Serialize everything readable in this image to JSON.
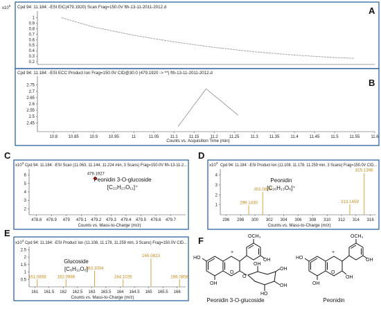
{
  "colors": {
    "frame": "#3d6fa6",
    "trace": "#9a9a9a",
    "stick": "#d9a441",
    "peaklabel": "#c08a1a",
    "marker": "#cc1111"
  },
  "panels": {
    "A": {
      "letter": "A",
      "title": "Cpd 94: 11.184: -ESI EIC(479.1920) Scan Frag=150.0V fth-13-11-2011-2012.d",
      "scale": "x10",
      "exp": "6"
    },
    "B": {
      "letter": "B",
      "title": "Cpd 94: 11.184: -ESI ECC Product Ion Frag=150.0V CID@30.0 (479.1920 -> **) fth-13-11-2011-2012.d",
      "xlabel": "Counts vs. Acquisition Time (min)"
    },
    "C": {
      "letter": "C",
      "title": "Cpd 94: 11.184: -ESI Scan (11.063, 11.144, 11.224 min, 3 Scans) Frag=150.0V fth-13-11-2...",
      "scale": "x10",
      "exp": "3",
      "xlabel": "Counts vs. Mass-to-Charge (m/z)",
      "compound": "Peonidin 3-O-glucoside",
      "formula": "[C₂₂H₂₃O₁₁]⁺"
    },
    "D": {
      "letter": "D",
      "title": "Cpd 94: 11.184: -ESI Product Ion (11.108, 11.178, 11.259 min, 3 Scans) Frag=150.0V CID...",
      "scale": "x10",
      "exp": "3",
      "xlabel": "Counts vs. Mass-to-Charge (m/z)",
      "compound": "Peonidin",
      "formula": "[C₁₆H₁₃O₆]⁺"
    },
    "E": {
      "letter": "E",
      "title": "Cpd 94: 11.184: -ESI Product Ion (11.108, 11.178, 11.259 min, 3 Scans) Frag=150.0V CID...",
      "scale": "x10",
      "exp": "3",
      "xlabel": "Counts vs. Mass-to-Charge (m/z)",
      "compound": "Glucoside",
      "formula": "[C₆H₁₁O₆]"
    },
    "F": {
      "letter": "F",
      "caption_left": "Peonidin 3-O-glucoside",
      "caption_right": "Peonidin",
      "atoms": {
        "oh": "OH",
        "ho": "HO",
        "och3": "OCH₃",
        "o": "O",
        "plus": "+"
      }
    }
  },
  "chart_data": [
    {
      "id": "A",
      "type": "line",
      "title": "Cpd 94: 11.184: -ESI EIC(479.1920) Scan Frag=150.0V fth-13-11-2011-2012.d",
      "xlabel": "",
      "ylabel": "",
      "xlim": [
        10.76,
        11.6
      ],
      "ylim": [
        0.15,
        1.12
      ],
      "y_multiplier": "x10^6",
      "yticks": [
        0.2,
        0.3,
        0.4,
        0.5,
        0.6,
        0.7,
        0.8,
        0.9,
        1
      ],
      "x": [
        10.82,
        10.9,
        11.0,
        11.1,
        11.2,
        11.3,
        11.4,
        11.5,
        11.55
      ],
      "y": [
        1.0,
        0.83,
        0.68,
        0.56,
        0.46,
        0.38,
        0.32,
        0.275,
        0.26
      ]
    },
    {
      "id": "B",
      "type": "line",
      "title": "Cpd 94: 11.184: -ESI ECC Product Ion Frag=150.0V CID@30.0 (479.1920 -> **) fth-13-11-2011-2012.d",
      "xlabel": "Counts vs. Acquisition Time (min)",
      "ylabel": "",
      "xlim": [
        10.76,
        11.6
      ],
      "ylim": [
        2.38,
        2.82
      ],
      "yticks": [
        2.45,
        2.5,
        2.55,
        2.6,
        2.65,
        2.7,
        2.75
      ],
      "xticks": [
        10.8,
        10.85,
        10.9,
        10.95,
        11,
        11.05,
        11.1,
        11.15,
        11.2,
        11.25,
        11.3,
        11.35,
        11.4,
        11.45,
        11.5,
        11.55,
        11.6
      ],
      "x": [
        11.11,
        11.18,
        11.26
      ],
      "y": [
        2.42,
        2.72,
        2.51
      ]
    },
    {
      "id": "C",
      "type": "scatter",
      "title": "Cpd 94: 11.184: -ESI Scan (11.063, 11.144, 11.224 min, 3 Scans) Frag=150.0V fth-13-11-2...",
      "xlabel": "Counts vs. Mass-to-Charge (m/z)",
      "ylabel": "",
      "xlim": [
        478.75,
        479.8
      ],
      "ylim": [
        1.3,
        6.7
      ],
      "y_multiplier": "x10^3",
      "yticks": [
        2,
        3,
        4,
        5,
        6
      ],
      "xticks": [
        478.8,
        478.9,
        479,
        479.1,
        479.2,
        479.3,
        479.4,
        479.5,
        479.6,
        479.7
      ],
      "peaks": [
        {
          "x": 479.1927,
          "y": 5.6,
          "label": "479.1927"
        }
      ]
    },
    {
      "id": "D",
      "type": "bar",
      "title": "Cpd 94: 11.184: -ESI Product Ion (11.108, 11.178, 11.259 min, 3 Scans) Frag=150.0V CID...",
      "xlabel": "Counts vs. Mass-to-Charge (m/z)",
      "ylabel": "",
      "xlim": [
        295.2,
        316.8
      ],
      "ylim": [
        0,
        4.6
      ],
      "y_multiplier": "x10^3",
      "yticks": [
        1,
        2,
        3,
        4
      ],
      "xticks": [
        296,
        298,
        300,
        302,
        304,
        306,
        308,
        310,
        312,
        314,
        316
      ],
      "peaks": [
        {
          "x": 299.143,
          "y": 0.95,
          "label": "299.1430"
        },
        {
          "x": 301.0875,
          "y": 2.3,
          "label": "301.0875"
        },
        {
          "x": 313.1459,
          "y": 1.05,
          "label": "313.1459"
        },
        {
          "x": 315.1396,
          "y": 4.2,
          "label": "315.1396"
        }
      ]
    },
    {
      "id": "E",
      "type": "bar",
      "title": "Cpd 94: 11.184: -ESI Product Ion (11.108, 11.178, 11.259 min, 3 Scans) Frag=150.0V CID...",
      "xlabel": "Counts vs. Mass-to-Charge (m/z)",
      "ylabel": "",
      "xlim": [
        160.8,
        166.3
      ],
      "ylim": [
        0,
        2.7
      ],
      "y_multiplier": "x10^3",
      "yticks": [
        0.5,
        1,
        1.5,
        2,
        2.5
      ],
      "xticks": [
        161,
        161.5,
        162,
        162.5,
        163,
        163.5,
        164,
        164.5,
        165,
        165.5,
        166
      ],
      "peaks": [
        {
          "x": 161.0858,
          "y": 0.5,
          "label": "161.0858"
        },
        {
          "x": 162.0986,
          "y": 0.5,
          "label": "162.0986"
        },
        {
          "x": 163.1004,
          "y": 1.08,
          "label": "163.1004"
        },
        {
          "x": 164.1026,
          "y": 0.5,
          "label": "164.1026"
        },
        {
          "x": 165.0823,
          "y": 1.9,
          "label": "165.0823"
        },
        {
          "x": 166.0858,
          "y": 0.5,
          "label": "166.0858"
        }
      ]
    }
  ]
}
